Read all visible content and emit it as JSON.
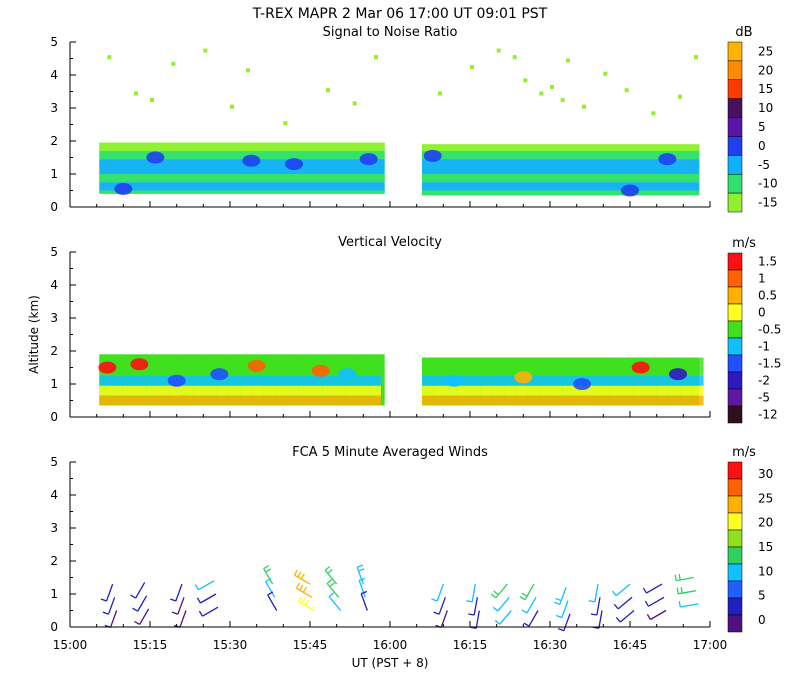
{
  "header": {
    "title": "T-REX   MAPR   2 Mar 06   17:00 UT   09:01   PST"
  },
  "chart_data": [
    {
      "type": "heatmap",
      "title": "Signal to Noise Ratio",
      "ylabel": "",
      "xlim": [
        900,
        1020
      ],
      "ylim": [
        0,
        5
      ],
      "colorbar": {
        "unit": "dB",
        "labels": [
          "25",
          "20",
          "15",
          "10",
          "5",
          "0",
          "-5",
          "-10",
          "-15"
        ],
        "colors": [
          "#ffb300",
          "#ff8a00",
          "#ff3a00",
          "#4a1060",
          "#5a14a8",
          "#2040f0",
          "#10b0ff",
          "#30e070",
          "#90f030"
        ]
      },
      "gates": [
        {
          "t_start": 905.5,
          "t_end": 959.0,
          "alt_min": 0.4,
          "alt_max": 1.95
        },
        {
          "t_start": 966.0,
          "t_end": 1018.0,
          "alt_min": 0.35,
          "alt_max": 1.9
        }
      ],
      "layers": [
        {
          "alt_min": 1.7,
          "alt_max": 1.95,
          "value": -15
        },
        {
          "alt_min": 1.45,
          "alt_max": 1.7,
          "value": -10
        },
        {
          "alt_min": 1.0,
          "alt_max": 1.45,
          "value": -5
        },
        {
          "alt_min": 0.75,
          "alt_max": 1.0,
          "value": -10
        },
        {
          "alt_min": 0.5,
          "alt_max": 0.75,
          "value": -5
        },
        {
          "alt_min": 0.35,
          "alt_max": 0.5,
          "value": -10
        }
      ],
      "features": [
        {
          "t": 916,
          "alt": 1.5,
          "value": 0
        },
        {
          "t": 934,
          "alt": 1.4,
          "value": 0
        },
        {
          "t": 942,
          "alt": 1.3,
          "value": 0
        },
        {
          "t": 956,
          "alt": 1.45,
          "value": 0
        },
        {
          "t": 968,
          "alt": 1.55,
          "value": 0
        },
        {
          "t": 1012,
          "alt": 1.45,
          "value": 0
        },
        {
          "t": 910,
          "alt": 0.55,
          "value": 0
        },
        {
          "t": 1005,
          "alt": 0.5,
          "value": 0
        }
      ]
    },
    {
      "type": "heatmap",
      "title": "Vertical Velocity",
      "ylabel": "Altitude (km)",
      "xlim": [
        900,
        1020
      ],
      "ylim": [
        0,
        5
      ],
      "colorbar": {
        "unit": "m/s",
        "labels": [
          "1.5",
          "1",
          "0.5",
          "0",
          "-0.5",
          "-1",
          "-1.5",
          "-2",
          "-5",
          "-12"
        ],
        "colors": [
          "#ff1010",
          "#ff6000",
          "#ffb000",
          "#ffff20",
          "#40e020",
          "#10c0ff",
          "#2050ff",
          "#3018c0",
          "#6018a0",
          "#301020"
        ]
      },
      "gates": [
        {
          "t_start": 905.5,
          "t_end": 959.0,
          "alt_min": 0.35,
          "alt_max": 1.9
        },
        {
          "t_start": 966.0,
          "t_end": 1018.0,
          "alt_min": 0.35,
          "alt_max": 1.8
        }
      ],
      "features": [
        {
          "t": 907,
          "alt": 1.5,
          "value": 1.5
        },
        {
          "t": 913,
          "alt": 1.6,
          "value": 1.5
        },
        {
          "t": 920,
          "alt": 1.1,
          "value": -1.5
        },
        {
          "t": 928,
          "alt": 1.3,
          "value": -1.5
        },
        {
          "t": 935,
          "alt": 1.55,
          "value": 1
        },
        {
          "t": 947,
          "alt": 1.4,
          "value": 1
        },
        {
          "t": 952,
          "alt": 1.3,
          "value": -1
        },
        {
          "t": 972,
          "alt": 1.1,
          "value": -1
        },
        {
          "t": 985,
          "alt": 1.2,
          "value": 0.5
        },
        {
          "t": 996,
          "alt": 1.0,
          "value": -1.5
        },
        {
          "t": 1007,
          "alt": 1.5,
          "value": 1.5
        },
        {
          "t": 1014,
          "alt": 1.3,
          "value": -2
        }
      ]
    },
    {
      "type": "wind_barbs",
      "title": "FCA 5 Minute Averaged Winds",
      "ylabel": "",
      "xlim": [
        900,
        1020
      ],
      "ylim": [
        0,
        5
      ],
      "xlabel": "UT  (PST + 8)",
      "xticks": [
        900,
        915,
        930,
        945,
        960,
        975,
        990,
        1005,
        1020
      ],
      "xtick_labels": [
        "15:00",
        "15:15",
        "15:30",
        "15:45",
        "16:00",
        "16:15",
        "16:30",
        "16:45",
        "17:00"
      ],
      "yticks": [
        0,
        1,
        2,
        3,
        4,
        5
      ],
      "colorbar": {
        "unit": "m/s",
        "labels": [
          "30",
          "25",
          "20",
          "15",
          "10",
          "5",
          "0"
        ],
        "colors": [
          "#ff1010",
          "#ff6000",
          "#ffb000",
          "#ffff20",
          "#90e020",
          "#30d060",
          "#10c0ff",
          "#2060ff",
          "#2020c0",
          "#501080"
        ]
      },
      "barbs": [
        {
          "t": 908,
          "alt": 1.0,
          "speed": 6,
          "dir": 200
        },
        {
          "t": 914,
          "alt": 1.05,
          "speed": 6,
          "dir": 210
        },
        {
          "t": 921,
          "alt": 1.0,
          "speed": 5,
          "dir": 200
        },
        {
          "t": 927,
          "alt": 1.1,
          "speed": 9,
          "dir": 240
        },
        {
          "t": 938,
          "alt": 1.0,
          "speed": 13,
          "dir": 330
        },
        {
          "t": 945,
          "alt": 1.0,
          "speed": 26,
          "dir": 300
        },
        {
          "t": 950,
          "alt": 1.0,
          "speed": 16,
          "dir": 320
        },
        {
          "t": 955,
          "alt": 1.0,
          "speed": 12,
          "dir": 340
        },
        {
          "t": 970,
          "alt": 1.0,
          "speed": 8,
          "dir": 200
        },
        {
          "t": 976,
          "alt": 1.0,
          "speed": 10,
          "dir": 190
        },
        {
          "t": 982,
          "alt": 1.0,
          "speed": 14,
          "dir": 220
        },
        {
          "t": 987,
          "alt": 1.0,
          "speed": 13,
          "dir": 210
        },
        {
          "t": 993,
          "alt": 0.9,
          "speed": 12,
          "dir": 200
        },
        {
          "t": 999,
          "alt": 1.0,
          "speed": 10,
          "dir": 190
        },
        {
          "t": 1005,
          "alt": 1.0,
          "speed": 9,
          "dir": 230
        },
        {
          "t": 1011,
          "alt": 1.0,
          "speed": 7,
          "dir": 240
        },
        {
          "t": 1017,
          "alt": 1.2,
          "speed": 17,
          "dir": 260
        }
      ]
    }
  ]
}
